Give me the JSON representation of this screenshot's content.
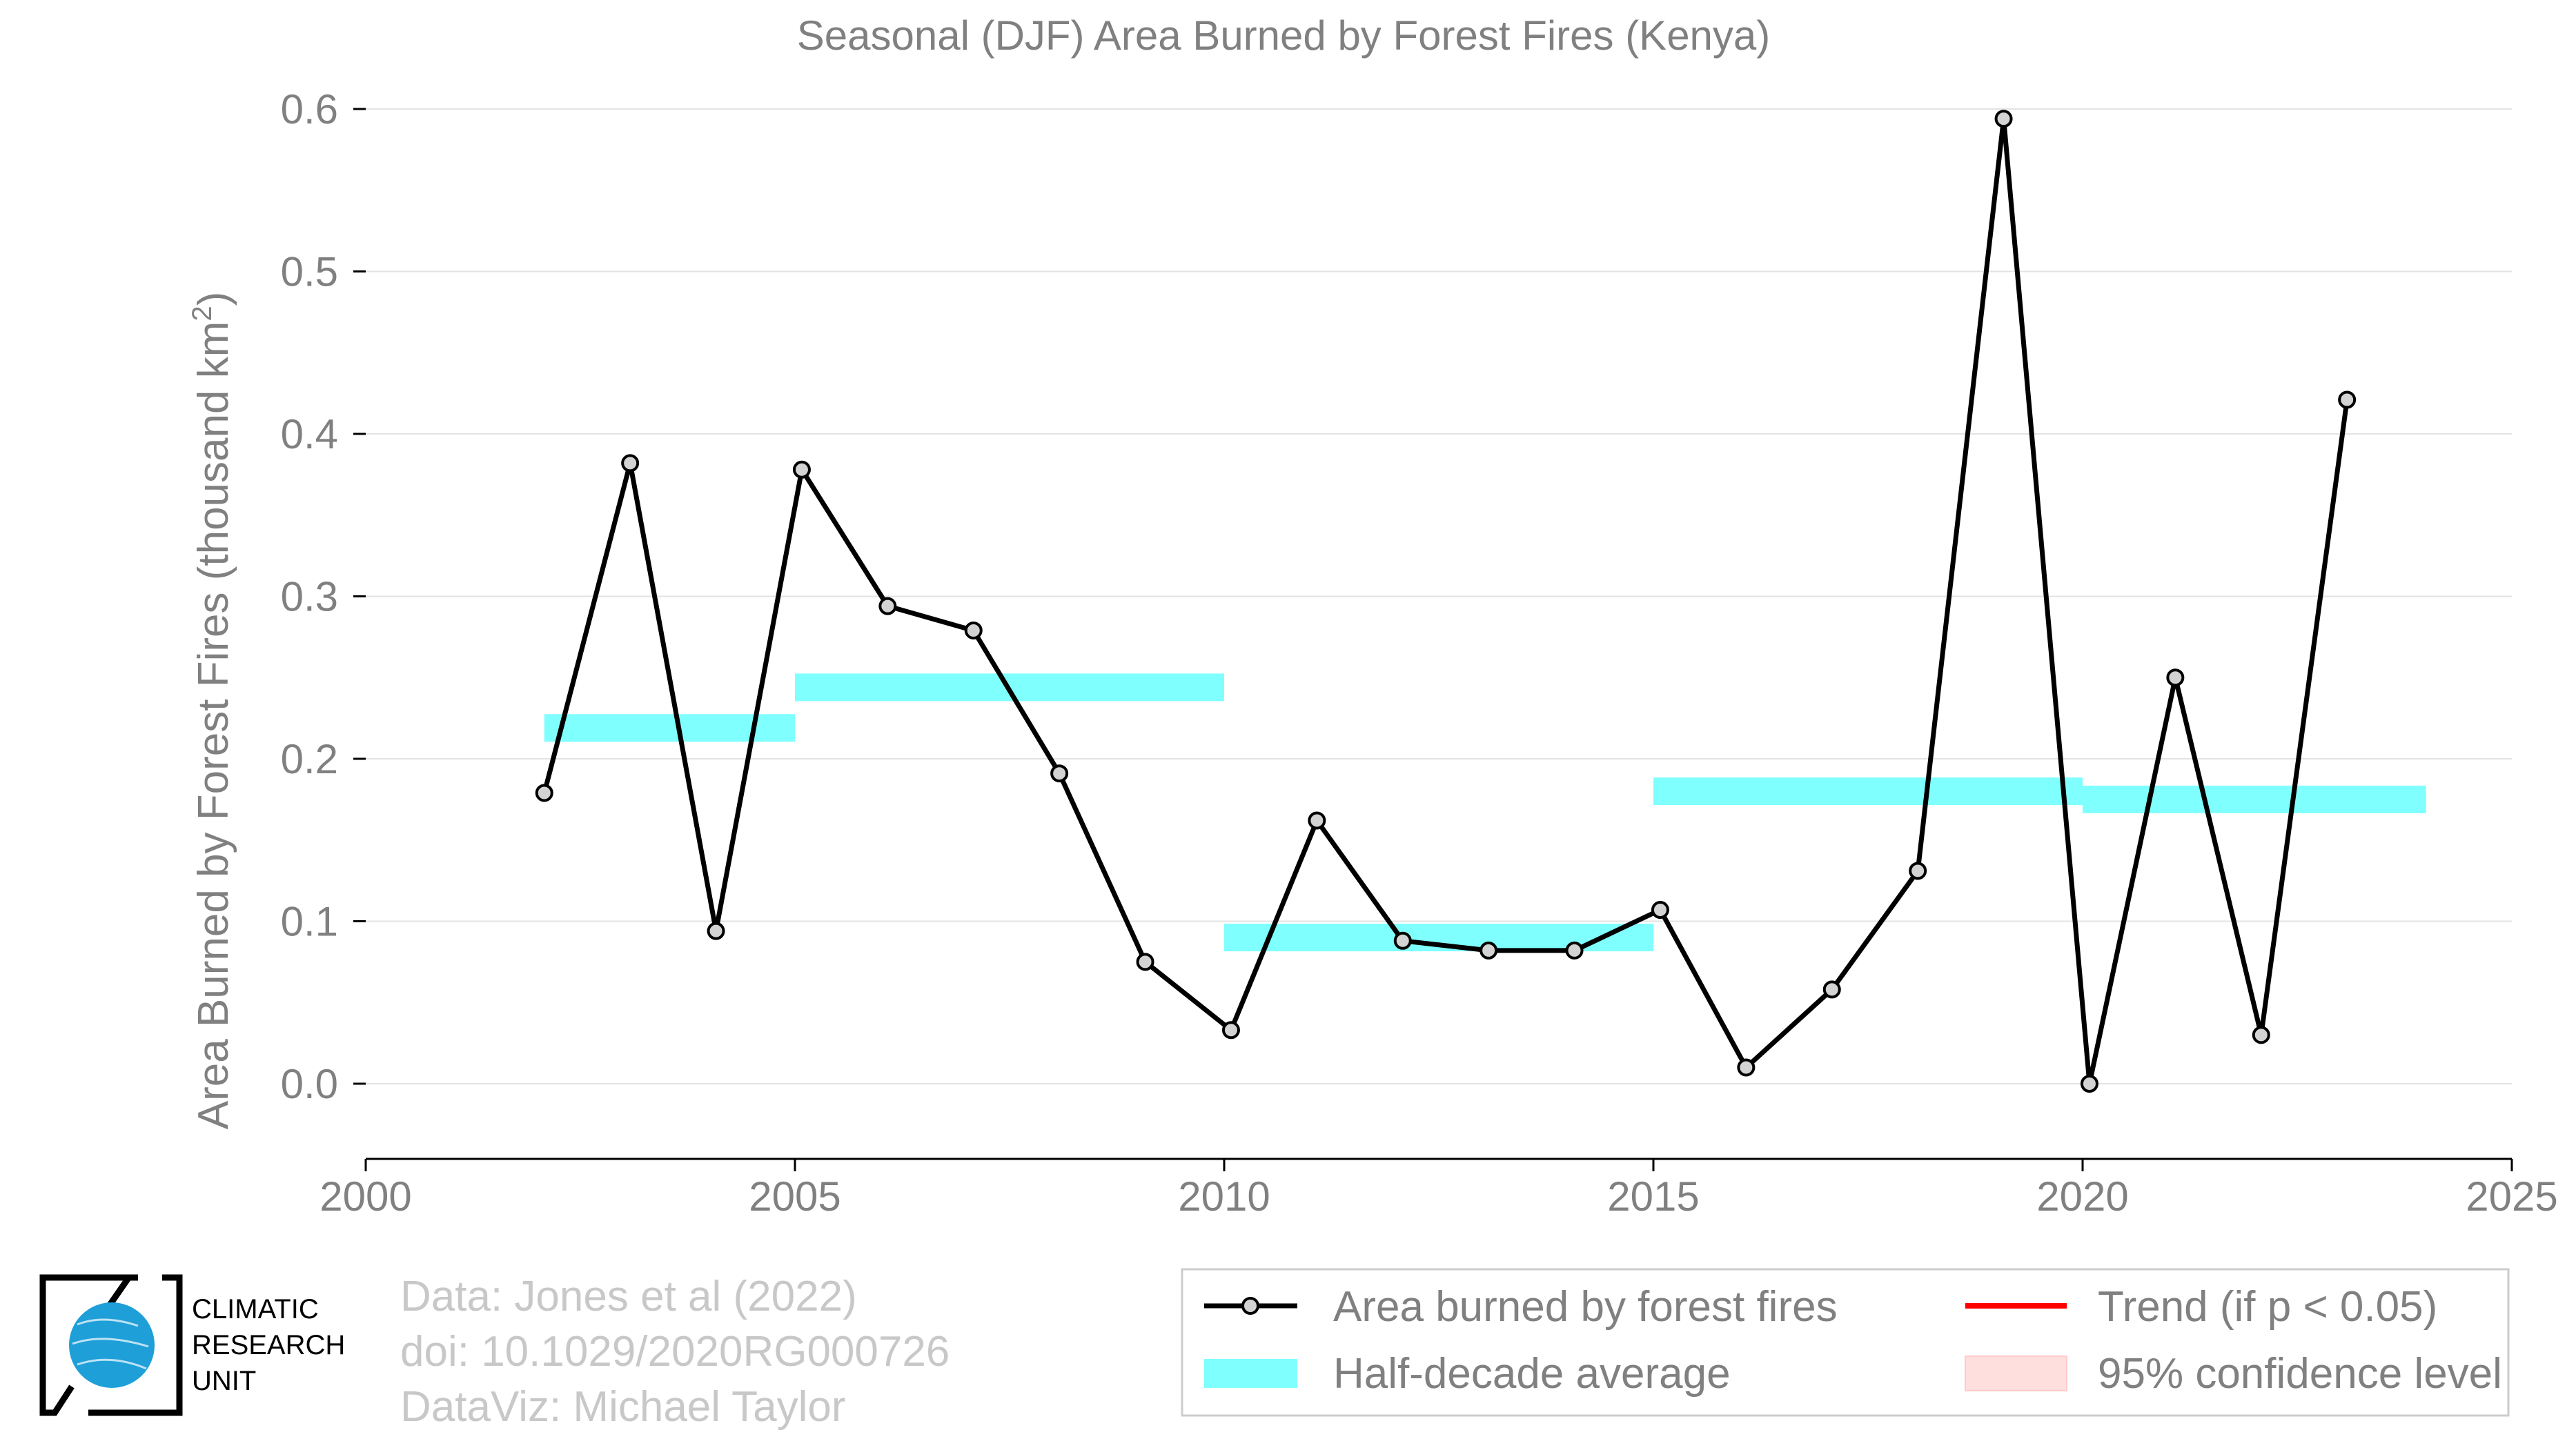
{
  "chart_data": {
    "type": "line",
    "title": "Seasonal (DJF) Area Burned by Forest Fires (Kenya)",
    "xlabel": "",
    "ylabel": "Area Burned by Forest Fires (thousand km",
    "ylabel_sup": "2",
    "ylabel_close": ")",
    "xlim": [
      2000,
      2025
    ],
    "ylim": [
      0.0,
      0.6
    ],
    "xticks": [
      2000,
      2005,
      2010,
      2015,
      2020,
      2025
    ],
    "yticks": [
      0.0,
      0.1,
      0.2,
      0.3,
      0.4,
      0.5,
      0.6
    ],
    "ytick_labels": [
      "0.0",
      "0.1",
      "0.2",
      "0.3",
      "0.4",
      "0.5",
      "0.6"
    ],
    "grid": true,
    "series": [
      {
        "name": "Area burned by forest fires",
        "color": "#000000",
        "marker_fill": "#d3d3d3",
        "x": [
          2002.08,
          2003.08,
          2004.08,
          2005.08,
          2006.08,
          2007.08,
          2008.08,
          2009.08,
          2010.08,
          2011.08,
          2012.08,
          2013.08,
          2014.08,
          2015.08,
          2016.08,
          2017.08,
          2018.08,
          2019.08,
          2020.08,
          2021.08,
          2022.08,
          2023.08
        ],
        "values": [
          0.179,
          0.382,
          0.094,
          0.378,
          0.294,
          0.279,
          0.191,
          0.075,
          0.033,
          0.162,
          0.088,
          0.082,
          0.082,
          0.107,
          0.01,
          0.058,
          0.131,
          0.594,
          0.0,
          0.25,
          0.03,
          0.421
        ]
      }
    ],
    "half_decade_average": {
      "name": "Half-decade average",
      "color": "#80ffff",
      "segments": [
        {
          "x0": 2002.08,
          "x1": 2005.0,
          "value": 0.219
        },
        {
          "x0": 2005.0,
          "x1": 2010.0,
          "value": 0.244
        },
        {
          "x0": 2010.0,
          "x1": 2015.0,
          "value": 0.09
        },
        {
          "x0": 2015.0,
          "x1": 2020.0,
          "value": 0.18
        },
        {
          "x0": 2020.0,
          "x1": 2024.0,
          "value": 0.175
        }
      ]
    },
    "legend": {
      "position": "bottom-right",
      "items": [
        {
          "label": "Area burned by forest fires",
          "kind": "line-marker",
          "color": "#000000"
        },
        {
          "label": "Trend (if p < 0.05)",
          "kind": "line",
          "color": "#ff0000"
        },
        {
          "label": "Half-decade average",
          "kind": "band",
          "color": "#80ffff"
        },
        {
          "label": "95% confidence level",
          "kind": "patch",
          "color": "#ffdede"
        }
      ]
    }
  },
  "credits": {
    "line1": "Data: Jones et al (2022)",
    "line2": "doi: 10.1029/2020RG000726",
    "line3": "DataViz: Michael Taylor"
  },
  "logo": {
    "line1": "CLIMATIC",
    "line2": "RESEARCH",
    "line3": "UNIT",
    "globe_color": "#1e9fd8"
  }
}
